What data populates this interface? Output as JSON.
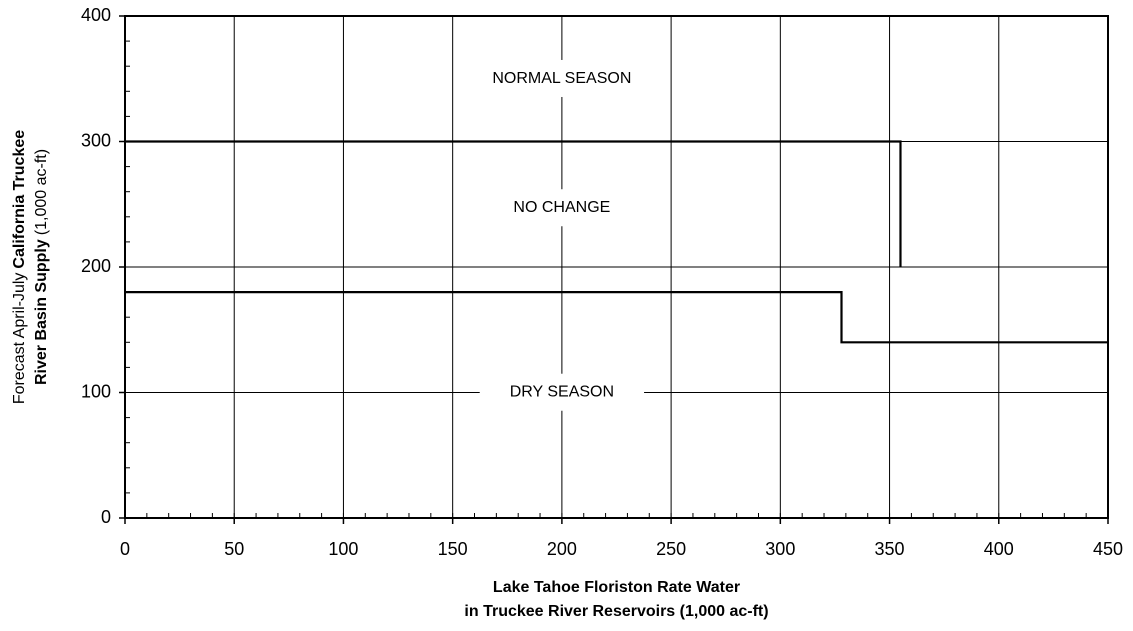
{
  "chart_data": {
    "type": "line",
    "xlabel": [
      "Lake Tahoe Floriston Rate Water",
      "in Truckee River Reservoirs  (1,000 ac-ft)"
    ],
    "ylabel": [
      [
        {
          "text": "Forecast April-July",
          "bold": false
        },
        {
          "text": "California Truckee",
          "bold": true
        }
      ],
      [
        {
          "text": "River Basin Supply",
          "bold": true
        },
        {
          "text": "(1,000 ac-ft)",
          "bold": false
        }
      ]
    ],
    "xlim": [
      0,
      450
    ],
    "xticks": [
      0,
      50,
      100,
      150,
      200,
      250,
      300,
      350,
      400,
      450
    ],
    "xminor": 10,
    "ylim": [
      0,
      400
    ],
    "yticks": [
      0,
      100,
      200,
      300,
      400
    ],
    "yminor": 20,
    "grid": true,
    "series": [
      {
        "color": "#000000",
        "x": [
          0,
          355,
          355
        ],
        "values": [
          300,
          300,
          200
        ]
      },
      {
        "color": "#000000",
        "x": [
          0,
          328,
          328,
          450
        ],
        "values": [
          180,
          180,
          140,
          140
        ]
      }
    ],
    "annotations": [
      {
        "text": "NORMAL SEASON",
        "x": 200,
        "y": 350
      },
      {
        "text": "NO CHANGE",
        "x": 200,
        "y": 247
      },
      {
        "text": "DRY SEASON",
        "x": 200,
        "y": 100
      }
    ]
  }
}
